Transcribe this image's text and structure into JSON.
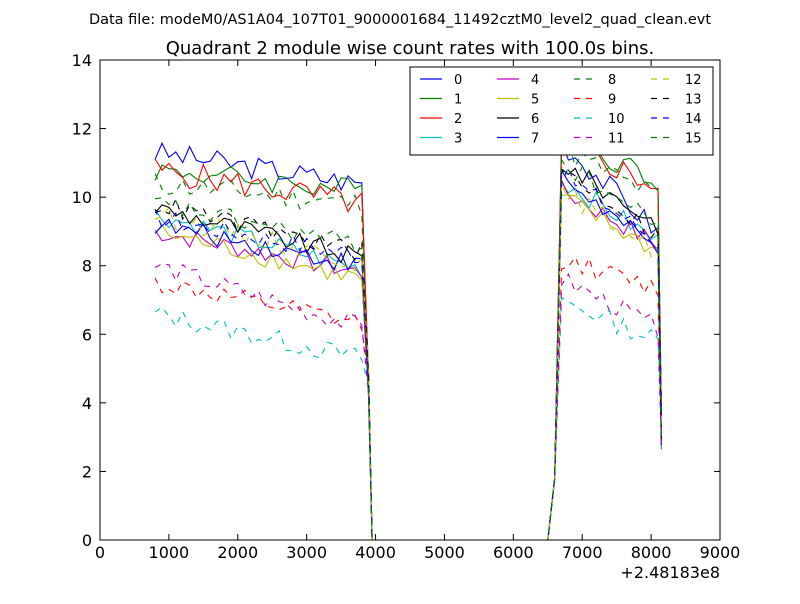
{
  "figure": {
    "suptitle": "Data file: modeM0/AS1A04_107T01_9000001684_11492cztM0_level2_quad_clean.evt"
  },
  "chart_data": {
    "type": "line",
    "title": "Quadrant 2 module wise count rates with 100.0s bins.",
    "xlabel": "",
    "ylabel": "",
    "x_offset_label": "+2.48183e8",
    "xlim": [
      0,
      9000
    ],
    "ylim": [
      0,
      14
    ],
    "x_ticks": [
      0,
      1000,
      2000,
      3000,
      4000,
      5000,
      6000,
      7000,
      8000,
      9000
    ],
    "y_ticks": [
      0,
      2,
      4,
      6,
      8,
      10,
      12,
      14
    ],
    "grid": false,
    "legend": {
      "placement": "top-right",
      "columns": 4
    },
    "gap": {
      "start": 4000,
      "end": 6500
    },
    "series": [
      {
        "name": "0",
        "color": "#0000ff",
        "dash": "solid",
        "base1": 11.3,
        "end1": 10.4,
        "base2": 11.6,
        "end2": 9.0,
        "noise": 0.35
      },
      {
        "name": "1",
        "color": "#008000",
        "dash": "solid",
        "base1": 10.8,
        "end1": 10.2,
        "base2": 11.8,
        "end2": 10.5,
        "noise": 0.35
      },
      {
        "name": "2",
        "color": "#ff0000",
        "dash": "solid",
        "base1": 10.8,
        "end1": 9.8,
        "base2": 11.6,
        "end2": 10.3,
        "noise": 0.4
      },
      {
        "name": "3",
        "color": "#00bfbf",
        "dash": "solid",
        "base1": 9.5,
        "end1": 7.9,
        "base2": 10.5,
        "end2": 8.7,
        "noise": 0.3
      },
      {
        "name": "4",
        "color": "#bf00bf",
        "dash": "solid",
        "base1": 9.0,
        "end1": 7.8,
        "base2": 10.2,
        "end2": 8.6,
        "noise": 0.3
      },
      {
        "name": "5",
        "color": "#bfbf00",
        "dash": "solid",
        "base1": 9.0,
        "end1": 7.6,
        "base2": 10.0,
        "end2": 8.4,
        "noise": 0.3
      },
      {
        "name": "6",
        "color": "#000000",
        "dash": "solid",
        "base1": 9.7,
        "end1": 8.2,
        "base2": 11.0,
        "end2": 9.2,
        "noise": 0.3
      },
      {
        "name": "7",
        "color": "#0000ff",
        "dash": "solid",
        "base1": 9.2,
        "end1": 8.0,
        "base2": 10.6,
        "end2": 8.4,
        "noise": 0.3
      },
      {
        "name": "8",
        "color": "#008000",
        "dash": "dashed",
        "base1": 10.4,
        "end1": 9.8,
        "base2": 11.4,
        "end2": 10.0,
        "noise": 0.35
      },
      {
        "name": "9",
        "color": "#ff0000",
        "dash": "dashed",
        "base1": 7.5,
        "end1": 6.3,
        "base2": 8.2,
        "end2": 7.3,
        "noise": 0.3
      },
      {
        "name": "10",
        "color": "#00bfbf",
        "dash": "dashed",
        "base1": 6.6,
        "end1": 5.3,
        "base2": 7.0,
        "end2": 5.8,
        "noise": 0.3
      },
      {
        "name": "11",
        "color": "#bf00bf",
        "dash": "dashed",
        "base1": 8.0,
        "end1": 6.2,
        "base2": 7.6,
        "end2": 6.2,
        "noise": 0.3
      },
      {
        "name": "12",
        "color": "#bfbf00",
        "dash": "dashed",
        "base1": 9.5,
        "end1": 8.1,
        "base2": 10.2,
        "end2": 8.4,
        "noise": 0.3
      },
      {
        "name": "13",
        "color": "#000000",
        "dash": "dashed",
        "base1": 9.8,
        "end1": 8.4,
        "base2": 10.8,
        "end2": 8.9,
        "noise": 0.3
      },
      {
        "name": "14",
        "color": "#0000ff",
        "dash": "dashed",
        "base1": 9.4,
        "end1": 8.3,
        "base2": 10.7,
        "end2": 8.7,
        "noise": 0.3
      },
      {
        "name": "15",
        "color": "#008000",
        "dash": "dashed",
        "base1": 9.8,
        "end1": 8.6,
        "base2": 11.0,
        "end2": 9.2,
        "noise": 0.3
      }
    ]
  }
}
